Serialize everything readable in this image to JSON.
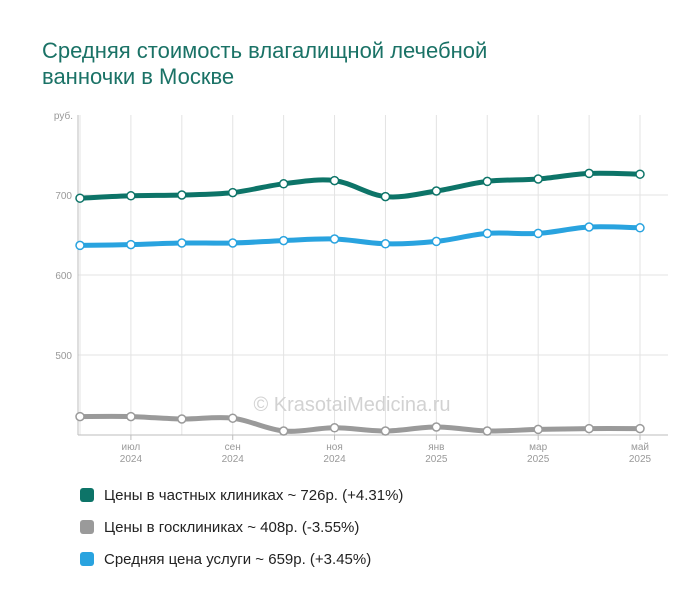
{
  "title_lines": [
    "Средняя стоимость влагалищной лечебной",
    "ванночки в Москве"
  ],
  "watermark": "© KrasotaiMedicina.ru",
  "chart_data": {
    "type": "line",
    "title": "Средняя стоимость влагалищной лечебной ванночки в Москве",
    "y_unit": "руб.",
    "ylim": [
      400,
      800
    ],
    "yticks": [
      500,
      600,
      700
    ],
    "grid": true,
    "x": [
      "2024-06",
      "2024-07",
      "2024-08",
      "2024-09",
      "2024-10",
      "2024-11",
      "2024-12",
      "2025-01",
      "2025-02",
      "2025-03",
      "2025-04",
      "2025-05"
    ],
    "xtick_labels": [
      {
        "index": 1,
        "month": "июл",
        "year": "2024"
      },
      {
        "index": 3,
        "month": "сен",
        "year": "2024"
      },
      {
        "index": 5,
        "month": "ноя",
        "year": "2024"
      },
      {
        "index": 7,
        "month": "янв",
        "year": "2025"
      },
      {
        "index": 9,
        "month": "мар",
        "year": "2025"
      },
      {
        "index": 11,
        "month": "май",
        "year": "2025"
      }
    ],
    "series": [
      {
        "key": "private",
        "color": "#0d7468",
        "values": [
          696,
          699,
          700,
          703,
          714,
          718,
          698,
          705,
          717,
          720,
          727,
          726
        ]
      },
      {
        "key": "public",
        "color": "#9a9a9a",
        "values": [
          423,
          423,
          420,
          421,
          405,
          409,
          405,
          410,
          405,
          407,
          408,
          408
        ]
      },
      {
        "key": "average",
        "color": "#29a3df",
        "values": [
          637,
          638,
          640,
          640,
          643,
          645,
          639,
          642,
          652,
          652,
          660,
          659
        ]
      }
    ],
    "legend": [
      {
        "color": "#0d7468",
        "label": "Цены в частных клиниках ~ 726р. (+4.31%)"
      },
      {
        "color": "#9a9a9a",
        "label": "Цены в госклиниках ~ 408р. (-3.55%)"
      },
      {
        "color": "#29a3df",
        "label": "Средняя цена услуги ~ 659р. (+3.45%)"
      }
    ]
  }
}
